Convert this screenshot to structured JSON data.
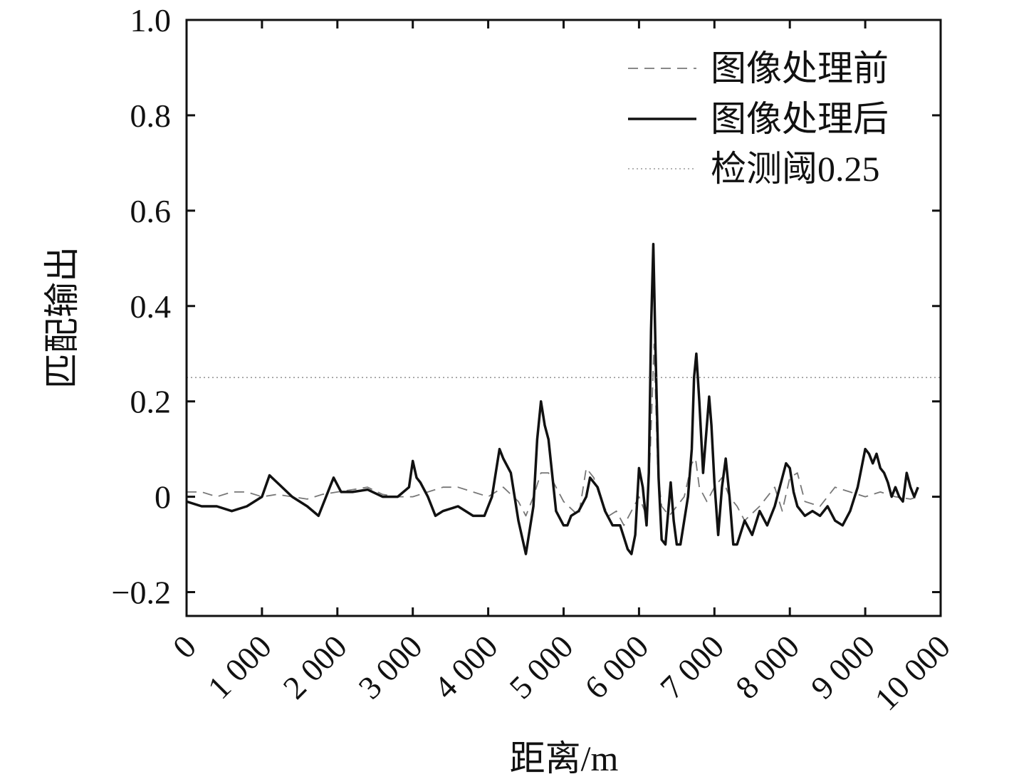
{
  "chart_data": {
    "type": "line",
    "title": "",
    "xlabel": "距离/m",
    "ylabel": "匹配输出",
    "xlim": [
      0,
      10000
    ],
    "ylim": [
      -0.25,
      1.0
    ],
    "x_ticks": [
      0,
      1000,
      2000,
      3000,
      4000,
      5000,
      6000,
      7000,
      8000,
      9000,
      10000
    ],
    "x_tick_labels": [
      "0",
      "1 000",
      "2 000",
      "3 000",
      "4 000",
      "5 000",
      "6 000",
      "7 000",
      "8 000",
      "9 000",
      "10 000"
    ],
    "y_ticks": [
      -0.2,
      0,
      0.2,
      0.4,
      0.6,
      0.8,
      1.0
    ],
    "y_tick_labels": [
      "−0.2",
      "0",
      "0.2",
      "0.4",
      "0.6",
      "0.8",
      "1.0"
    ],
    "grid": false,
    "legend_position": "top-right",
    "series": [
      {
        "name": "图像处理前",
        "style": "dashed",
        "color": "#777777",
        "x": [
          0,
          200,
          400,
          600,
          800,
          1000,
          1200,
          1400,
          1600,
          1800,
          2000,
          2200,
          2400,
          2600,
          2800,
          3000,
          3200,
          3400,
          3600,
          3800,
          4000,
          4200,
          4400,
          4500,
          4600,
          4700,
          4800,
          5000,
          5200,
          5300,
          5400,
          5500,
          5600,
          5700,
          5800,
          5900,
          6000,
          6100,
          6150,
          6200,
          6250,
          6300,
          6400,
          6500,
          6600,
          6700,
          6750,
          6800,
          6900,
          7000,
          7100,
          7200,
          7300,
          7400,
          7600,
          7800,
          7900,
          8000,
          8100,
          8200,
          8400,
          8600,
          8800,
          9000,
          9200,
          9400,
          9600,
          9700
        ],
        "y": [
          0.01,
          0.01,
          0.0,
          0.01,
          0.01,
          0.0,
          0.005,
          0.0,
          -0.005,
          0.005,
          0.01,
          0.015,
          0.02,
          0.005,
          0.0,
          0.0,
          0.01,
          0.02,
          0.02,
          0.01,
          0.0,
          0.02,
          -0.01,
          -0.04,
          0.0,
          0.05,
          0.05,
          -0.01,
          -0.04,
          0.06,
          0.04,
          -0.01,
          -0.04,
          -0.03,
          -0.06,
          -0.03,
          0.0,
          -0.04,
          0.1,
          0.32,
          0.05,
          -0.02,
          -0.04,
          -0.02,
          0.0,
          0.07,
          0.08,
          0.02,
          -0.01,
          0.02,
          0.04,
          0.0,
          -0.02,
          -0.05,
          -0.02,
          0.02,
          -0.03,
          0.04,
          0.05,
          -0.01,
          -0.02,
          0.02,
          0.01,
          0.0,
          0.01,
          0.0,
          -0.005,
          0.0
        ]
      },
      {
        "name": "图像处理后",
        "style": "solid",
        "color": "#111111",
        "x": [
          0,
          200,
          400,
          600,
          800,
          1000,
          1100,
          1200,
          1400,
          1600,
          1750,
          1900,
          1950,
          2050,
          2200,
          2400,
          2600,
          2800,
          2950,
          3000,
          3050,
          3100,
          3200,
          3300,
          3400,
          3600,
          3800,
          3950,
          4050,
          4150,
          4200,
          4300,
          4400,
          4500,
          4600,
          4650,
          4700,
          4750,
          4800,
          4900,
          5000,
          5050,
          5100,
          5200,
          5300,
          5350,
          5450,
          5550,
          5650,
          5750,
          5850,
          5900,
          5950,
          6000,
          6050,
          6100,
          6130,
          6160,
          6190,
          6220,
          6260,
          6300,
          6350,
          6420,
          6460,
          6500,
          6550,
          6600,
          6650,
          6700,
          6730,
          6760,
          6800,
          6850,
          6900,
          6930,
          6960,
          7000,
          7050,
          7100,
          7150,
          7200,
          7250,
          7300,
          7400,
          7500,
          7600,
          7700,
          7800,
          7900,
          7950,
          8000,
          8050,
          8100,
          8200,
          8300,
          8400,
          8500,
          8600,
          8700,
          8800,
          8900,
          9000,
          9050,
          9100,
          9150,
          9200,
          9250,
          9300,
          9350,
          9400,
          9450,
          9500,
          9550,
          9600,
          9650,
          9700
        ],
        "y": [
          -0.01,
          -0.02,
          -0.02,
          -0.03,
          -0.02,
          0.0,
          0.045,
          0.03,
          0.0,
          -0.02,
          -0.04,
          0.02,
          0.04,
          0.01,
          0.01,
          0.015,
          0.0,
          0.0,
          0.02,
          0.075,
          0.04,
          0.03,
          0.0,
          -0.04,
          -0.03,
          -0.02,
          -0.04,
          -0.04,
          0.0,
          0.1,
          0.08,
          0.05,
          -0.05,
          -0.12,
          -0.02,
          0.12,
          0.2,
          0.15,
          0.12,
          -0.03,
          -0.06,
          -0.06,
          -0.04,
          -0.03,
          0.0,
          0.04,
          0.02,
          -0.03,
          -0.06,
          -0.06,
          -0.11,
          -0.12,
          -0.08,
          0.06,
          0.02,
          -0.06,
          0.05,
          0.35,
          0.53,
          0.3,
          0.04,
          -0.09,
          -0.1,
          0.03,
          -0.05,
          -0.1,
          -0.1,
          -0.05,
          0.0,
          0.1,
          0.25,
          0.3,
          0.2,
          0.05,
          0.15,
          0.21,
          0.15,
          0.03,
          -0.08,
          0.02,
          0.08,
          0.0,
          -0.1,
          -0.1,
          -0.05,
          -0.08,
          -0.03,
          -0.06,
          -0.02,
          0.04,
          0.07,
          0.06,
          0.01,
          -0.02,
          -0.04,
          -0.03,
          -0.04,
          -0.02,
          -0.05,
          -0.06,
          -0.03,
          0.02,
          0.1,
          0.09,
          0.07,
          0.09,
          0.06,
          0.05,
          0.03,
          0.0,
          0.02,
          0.0,
          -0.01,
          0.05,
          0.02,
          0.0,
          0.02
        ]
      },
      {
        "name": "检测阈0.25",
        "style": "dotted",
        "color": "#999999",
        "x": [
          0,
          10000
        ],
        "y": [
          0.25,
          0.25
        ]
      }
    ]
  }
}
